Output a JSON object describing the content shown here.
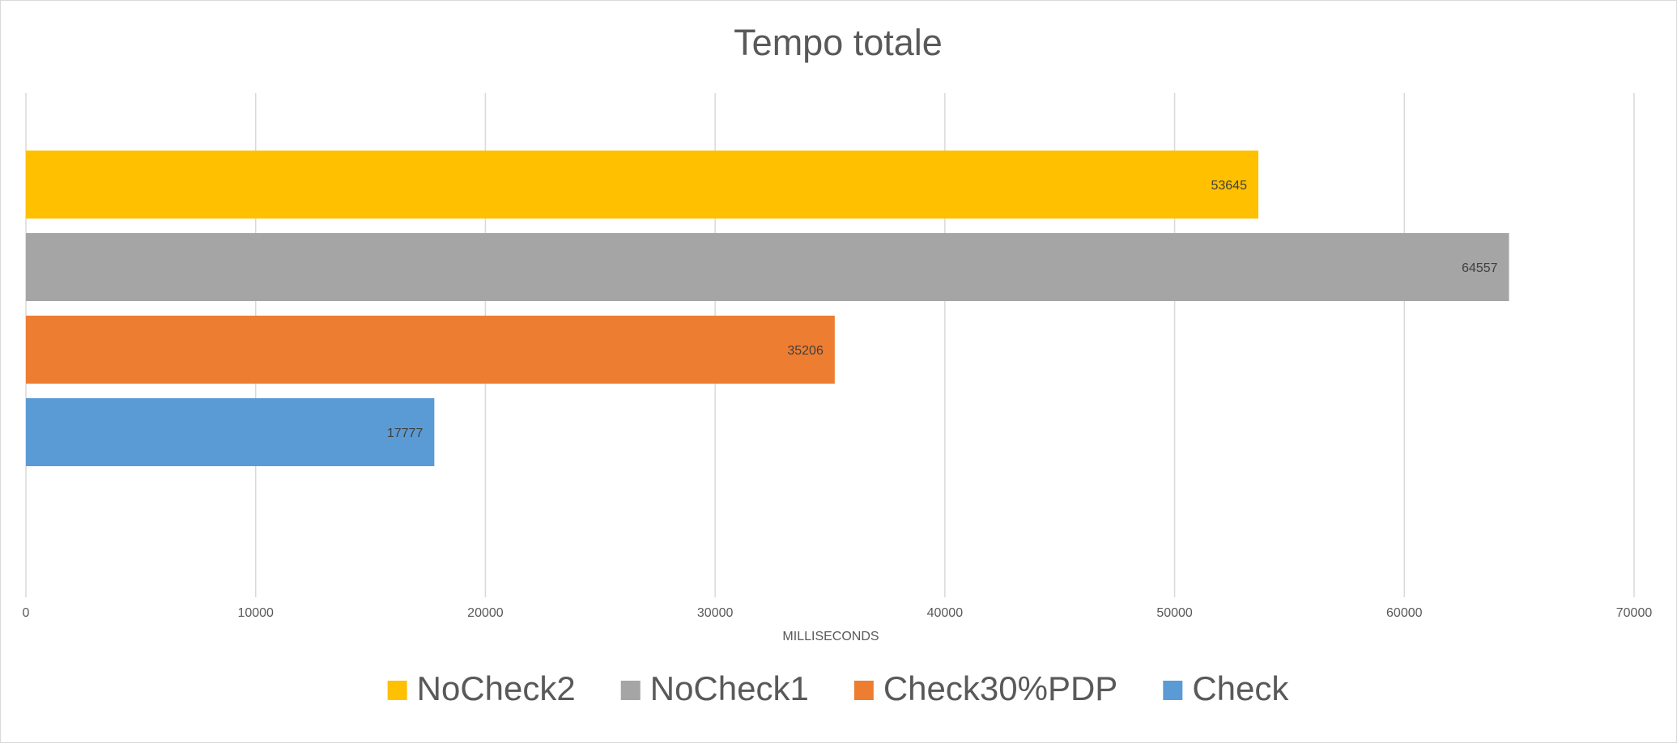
{
  "chart_data": {
    "type": "bar",
    "orientation": "horizontal",
    "title": "Tempo totale",
    "xlabel": "MILLISECONDS",
    "ylabel": "",
    "xlim": [
      0,
      70000
    ],
    "xticks": [
      "0",
      "10000",
      "20000",
      "30000",
      "40000",
      "50000",
      "60000",
      "70000"
    ],
    "grid": "vertical",
    "legend_position": "bottom",
    "series": [
      {
        "name": "NoCheck2",
        "value": 53645,
        "label": "53645",
        "color": "#FFC000"
      },
      {
        "name": "NoCheck1",
        "value": 64557,
        "label": "64557",
        "color": "#A5A5A5"
      },
      {
        "name": "Check30%PDP",
        "value": 35206,
        "label": "35206",
        "color": "#ED7D31"
      },
      {
        "name": "Check",
        "value": 17777,
        "label": "17777",
        "color": "#5B9BD5"
      }
    ]
  }
}
